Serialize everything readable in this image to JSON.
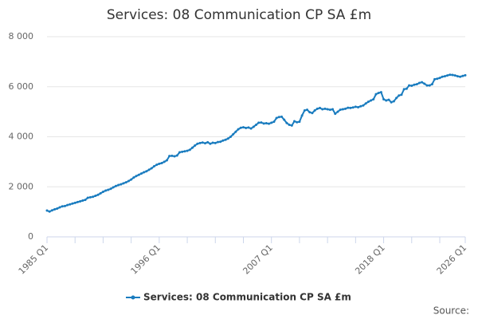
{
  "chart_data": {
    "type": "line",
    "title": "Services: 08 Communication CP SA £m",
    "source": "Source:",
    "categories": [
      "1985 Q1",
      null,
      null,
      null,
      null,
      null,
      null,
      null,
      null,
      null,
      null,
      null,
      null,
      null,
      null,
      null,
      null,
      null,
      null,
      null,
      null,
      null,
      null,
      null,
      null,
      null,
      null,
      null,
      null,
      null,
      null,
      null,
      null,
      null,
      null,
      null,
      null,
      null,
      null,
      null,
      null,
      null,
      null,
      null,
      "1996 Q1",
      null,
      null,
      null,
      null,
      null,
      null,
      null,
      null,
      null,
      null,
      null,
      null,
      null,
      null,
      null,
      null,
      null,
      null,
      null,
      null,
      null,
      null,
      null,
      null,
      null,
      null,
      null,
      null,
      null,
      null,
      null,
      null,
      null,
      null,
      null,
      null,
      null,
      null,
      null,
      null,
      null,
      null,
      null,
      "2007 Q1",
      null,
      null,
      null,
      null,
      null,
      null,
      null,
      null,
      null,
      null,
      null,
      null,
      null,
      null,
      null,
      null,
      null,
      null,
      null,
      null,
      null,
      null,
      null,
      null,
      null,
      null,
      null,
      null,
      null,
      null,
      null,
      null,
      null,
      null,
      null,
      null,
      null,
      null,
      null,
      null,
      null,
      null,
      null,
      "2018 Q1",
      null,
      null,
      null,
      null,
      null,
      null,
      null,
      null,
      null,
      null,
      null,
      null,
      null,
      null,
      null,
      null,
      null,
      null,
      null,
      null,
      null,
      null,
      null,
      null,
      null,
      null,
      null,
      null,
      null,
      null,
      null,
      "2026 Q1"
    ],
    "series": [
      {
        "name": "Services: 08 Communication CP SA £m",
        "color": "#1a7cbf",
        "values": [
          1050,
          1010,
          1060,
          1100,
          1130,
          1180,
          1220,
          1230,
          1270,
          1300,
          1330,
          1360,
          1390,
          1420,
          1450,
          1480,
          1560,
          1580,
          1600,
          1640,
          1680,
          1740,
          1800,
          1850,
          1880,
          1920,
          1980,
          2030,
          2070,
          2100,
          2140,
          2180,
          2230,
          2290,
          2370,
          2430,
          2480,
          2530,
          2580,
          2620,
          2680,
          2740,
          2820,
          2880,
          2920,
          2950,
          3000,
          3060,
          3230,
          3240,
          3220,
          3250,
          3380,
          3400,
          3420,
          3440,
          3480,
          3560,
          3650,
          3720,
          3750,
          3770,
          3740,
          3780,
          3720,
          3760,
          3750,
          3790,
          3800,
          3850,
          3880,
          3930,
          4000,
          4100,
          4200,
          4300,
          4360,
          4380,
          4350,
          4370,
          4330,
          4400,
          4480,
          4560,
          4570,
          4530,
          4540,
          4520,
          4560,
          4600,
          4750,
          4790,
          4800,
          4680,
          4550,
          4480,
          4450,
          4620,
          4580,
          4600,
          4850,
          5050,
          5080,
          4980,
          4950,
          5050,
          5120,
          5150,
          5100,
          5120,
          5100,
          5080,
          5100,
          4920,
          5000,
          5080,
          5100,
          5120,
          5160,
          5150,
          5170,
          5200,
          5180,
          5220,
          5250,
          5330,
          5400,
          5450,
          5500,
          5700,
          5750,
          5780,
          5500,
          5450,
          5480,
          5380,
          5420,
          5550,
          5650,
          5680,
          5900,
          5920,
          6050,
          6040,
          6080,
          6100,
          6150,
          6180,
          6120,
          6050,
          6050,
          6100,
          6300,
          6320,
          6350,
          6400,
          6420,
          6450,
          6480,
          6470,
          6450,
          6420,
          6400,
          6430,
          6460
        ]
      }
    ],
    "ylim": [
      0,
      8000
    ],
    "yticks": [
      0,
      {
        "value": 2000,
        "label": "2 000"
      },
      {
        "value": 4000,
        "label": "4 000"
      },
      {
        "value": 6000,
        "label": "6 000"
      },
      {
        "value": 8000,
        "label": "8 000"
      }
    ],
    "grid": true
  }
}
